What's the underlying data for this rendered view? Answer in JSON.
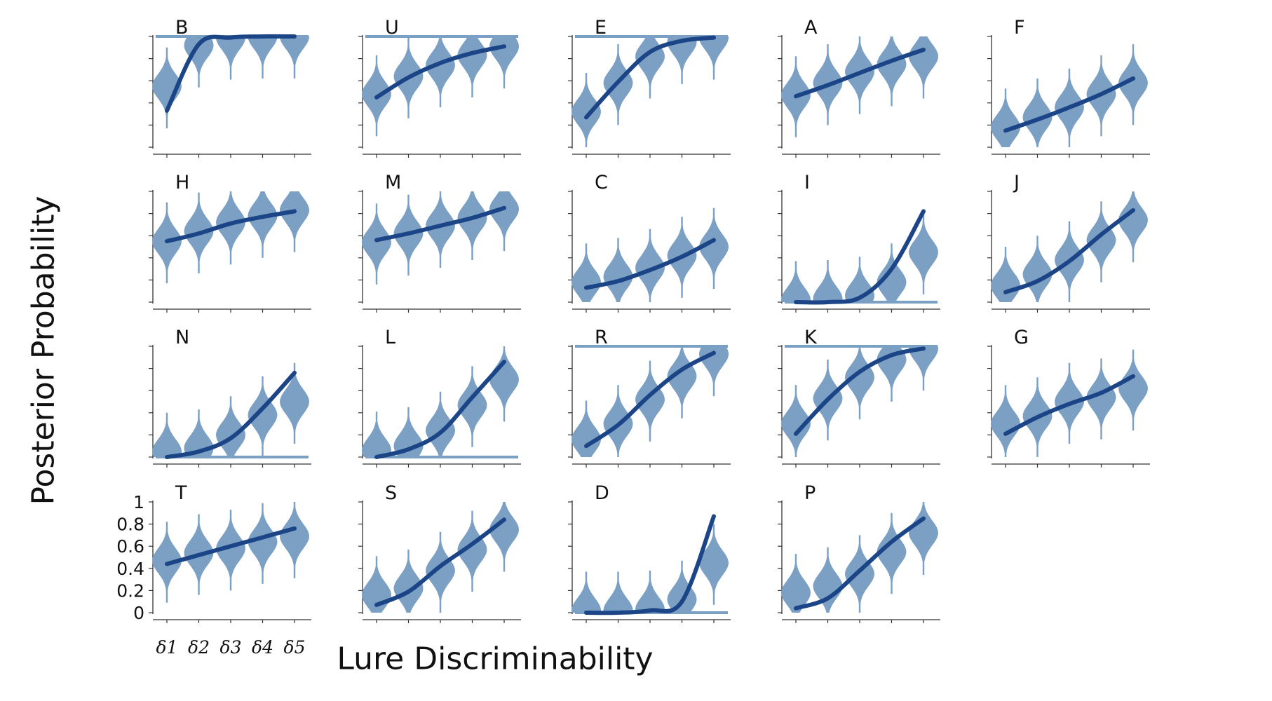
{
  "figure": {
    "ylabel": "Posterior Probability",
    "xlabel": "Lure Discriminability",
    "colors": {
      "violin": "#7ba0c4",
      "curve": "#1c4587",
      "axis": "#333333",
      "text": "#111111"
    }
  },
  "chart_data": {
    "type": "violin-grid",
    "ylim": [
      0,
      1
    ],
    "yticks": [
      0,
      0.2,
      0.4,
      0.6,
      0.8,
      1
    ],
    "ytick_labels": [
      "0",
      "0.2",
      "0.4",
      "0.6",
      "0.8",
      "1"
    ],
    "x_categories": [
      "δ1",
      "δ2",
      "δ3",
      "δ4",
      "δ5"
    ],
    "panels": [
      {
        "label": "B",
        "curve": [
          0.33,
          0.93,
          0.99,
          1.0,
          1.0
        ],
        "median": [
          0.55,
          0.92,
          0.99,
          1.0,
          1.0
        ]
      },
      {
        "label": "U",
        "curve": [
          0.45,
          0.63,
          0.76,
          0.85,
          0.91
        ],
        "median": [
          0.48,
          0.64,
          0.74,
          0.83,
          0.91
        ]
      },
      {
        "label": "E",
        "curve": [
          0.27,
          0.59,
          0.86,
          0.96,
          0.99
        ],
        "median": [
          0.32,
          0.58,
          0.82,
          0.95,
          0.99
        ]
      },
      {
        "label": "A",
        "curve": [
          0.46,
          0.56,
          0.67,
          0.78,
          0.88
        ],
        "median": [
          0.47,
          0.58,
          0.68,
          0.75,
          0.82
        ]
      },
      {
        "label": "F",
        "curve": [
          0.15,
          0.25,
          0.36,
          0.48,
          0.62
        ],
        "median": [
          0.18,
          0.27,
          0.36,
          0.48,
          0.58
        ]
      },
      {
        "label": "H",
        "curve": [
          0.55,
          0.62,
          0.71,
          0.77,
          0.82
        ],
        "median": [
          0.55,
          0.64,
          0.72,
          0.78,
          0.83
        ]
      },
      {
        "label": "M",
        "curve": [
          0.56,
          0.62,
          0.69,
          0.76,
          0.85
        ],
        "median": [
          0.54,
          0.62,
          0.69,
          0.76,
          0.84
        ]
      },
      {
        "label": "C",
        "curve": [
          0.13,
          0.19,
          0.29,
          0.41,
          0.56
        ],
        "median": [
          0.18,
          0.23,
          0.31,
          0.42,
          0.5
        ]
      },
      {
        "label": "I",
        "curve": [
          0.0,
          0.0,
          0.04,
          0.3,
          0.82
        ],
        "median": [
          0.02,
          0.03,
          0.06,
          0.18,
          0.45
        ]
      },
      {
        "label": "J",
        "curve": [
          0.09,
          0.19,
          0.37,
          0.61,
          0.83
        ],
        "median": [
          0.15,
          0.25,
          0.38,
          0.56,
          0.74
        ]
      },
      {
        "label": "N",
        "curve": [
          0.0,
          0.05,
          0.17,
          0.44,
          0.76
        ],
        "median": [
          0.05,
          0.08,
          0.2,
          0.38,
          0.5
        ]
      },
      {
        "label": "L",
        "curve": [
          0.0,
          0.07,
          0.22,
          0.54,
          0.86
        ],
        "median": [
          0.06,
          0.1,
          0.24,
          0.47,
          0.7
        ]
      },
      {
        "label": "R",
        "curve": [
          0.1,
          0.29,
          0.56,
          0.79,
          0.94
        ],
        "median": [
          0.16,
          0.3,
          0.52,
          0.73,
          0.93
        ]
      },
      {
        "label": "K",
        "curve": [
          0.21,
          0.52,
          0.77,
          0.92,
          0.98
        ],
        "median": [
          0.3,
          0.53,
          0.72,
          0.88,
          0.98
        ]
      },
      {
        "label": "G",
        "curve": [
          0.21,
          0.36,
          0.48,
          0.58,
          0.73
        ],
        "median": [
          0.3,
          0.37,
          0.5,
          0.54,
          0.62
        ]
      },
      {
        "label": "T",
        "curve": [
          0.44,
          0.52,
          0.6,
          0.68,
          0.76
        ],
        "median": [
          0.47,
          0.54,
          0.58,
          0.64,
          0.69
        ]
      },
      {
        "label": "S",
        "curve": [
          0.07,
          0.19,
          0.42,
          0.62,
          0.84
        ],
        "median": [
          0.16,
          0.22,
          0.38,
          0.57,
          0.75
        ]
      },
      {
        "label": "D",
        "curve": [
          0.0,
          0.0,
          0.02,
          0.1,
          0.87
        ],
        "median": [
          0.02,
          0.02,
          0.03,
          0.12,
          0.45
        ]
      },
      {
        "label": "P",
        "curve": [
          0.04,
          0.13,
          0.38,
          0.64,
          0.85
        ],
        "median": [
          0.18,
          0.24,
          0.35,
          0.55,
          0.72
        ]
      }
    ]
  }
}
